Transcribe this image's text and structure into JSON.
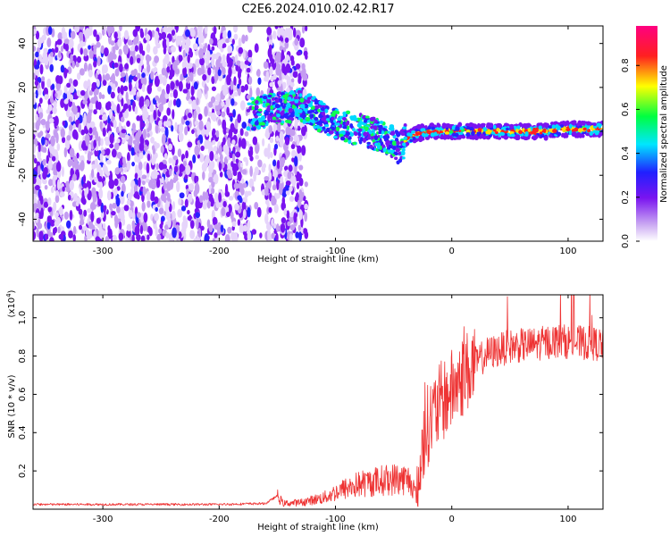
{
  "title": "C2E6.2024.010.02.42.R17",
  "chart_data": [
    {
      "type": "heatmap",
      "name": "spectrogram",
      "xlabel": "Height of straight line (km)",
      "ylabel": "Frequency (Hz)",
      "xlim": [
        -360,
        130
      ],
      "ylim": [
        -50,
        48
      ],
      "xticks": [
        -300,
        -200,
        -100,
        0,
        100
      ],
      "yticks": [
        -40,
        -20,
        0,
        20,
        40
      ],
      "colorbar": {
        "label": "Normalized spectral amplitude",
        "range": [
          0,
          0.98
        ],
        "ticks": [
          0.0,
          0.2,
          0.4,
          0.6,
          0.8
        ],
        "colors": [
          "#ffffff",
          "#c9a6f2",
          "#7a14f0",
          "#2020ff",
          "#00e6ff",
          "#00ff40",
          "#ffff00",
          "#ff2020",
          "#ff0080"
        ]
      },
      "ridge": {
        "x": [
          -170,
          -155,
          -130,
          -110,
          -90,
          -75,
          -60,
          -50,
          -45,
          -40,
          -30,
          -20,
          0,
          20,
          50,
          80,
          100,
          130
        ],
        "freq": [
          8,
          10,
          12,
          6,
          2,
          0,
          -2,
          -5,
          -8,
          -4,
          -1,
          0,
          0,
          0,
          0,
          0,
          1,
          1
        ]
      }
    },
    {
      "type": "line",
      "name": "snr",
      "xlabel": "Height of straight line (km)",
      "ylabel": "SNR (10 * v/v)",
      "yscale_label": "(x10",
      "yscale_exp": "4",
      "xlim": [
        -360,
        130
      ],
      "ylim": [
        0,
        1.12
      ],
      "xticks": [
        -300,
        -200,
        -100,
        0,
        100
      ],
      "yticks": [
        0.2,
        0.4,
        0.6,
        0.8,
        1.0
      ],
      "color": "#ee3333",
      "envelope": {
        "x": [
          -360,
          -200,
          -160,
          -150,
          -145,
          -130,
          -110,
          -95,
          -80,
          -60,
          -45,
          -35,
          -30,
          -25,
          -20,
          -10,
          0,
          10,
          20,
          30,
          50,
          70,
          90,
          110,
          130
        ],
        "y": [
          0.025,
          0.025,
          0.03,
          0.07,
          0.03,
          0.035,
          0.06,
          0.1,
          0.13,
          0.15,
          0.16,
          0.15,
          0.06,
          0.35,
          0.45,
          0.55,
          0.62,
          0.7,
          0.76,
          0.81,
          0.85,
          0.86,
          0.88,
          0.87,
          0.86
        ]
      }
    }
  ]
}
